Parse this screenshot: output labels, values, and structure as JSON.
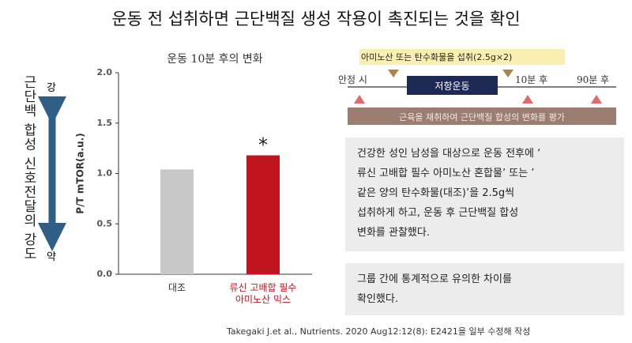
{
  "header": {
    "title": "운동 전 섭취하면 근단백질 생성 작용이 촉진되는 것을 확인"
  },
  "side": {
    "label": "근단백 합성 신호전달의 강도",
    "high": "강",
    "low": "약"
  },
  "chart_data": {
    "type": "bar",
    "subtitle": "운동 10분 후의 변화",
    "y_label": "P/T mTOR(a.u.)",
    "categories": [
      "대조",
      "류신 고배합 필수\n아미노산 믹스"
    ],
    "values": [
      1.04,
      1.18
    ],
    "colors": [
      "#c8c8c8",
      "#c0141f"
    ],
    "ylim": [
      0,
      2
    ],
    "yticks": [
      {
        "value": 0,
        "label": "0.0"
      },
      {
        "value": 0.5,
        "label": "0.5"
      },
      {
        "value": 1,
        "label": "1.0"
      },
      {
        "value": 1.5,
        "label": "1.5"
      },
      {
        "value": 2,
        "label": "2.0"
      }
    ],
    "annotation": "*"
  },
  "timeline": {
    "intake": "아미노산 또는 탄수화물을 섭취(2.5g×2)",
    "rest": "안정 시",
    "exercise": "저항운동",
    "t10": "10분 후",
    "t90": "90분 후",
    "evaluate": "근육을 채취하여 근단백질 합성의 변화를 평가"
  },
  "boxes": [
    {
      "lines": [
        "건강한 성인 남성을 대상으로 운동 전후에 ‘",
        "류신 고배합 필수 아미노산 혼합물’ 또는 ’",
        "같은 양의 탄수화물(대조)’을 2.5g씩",
        "섭취하게 하고, 운동 후 근단백질 합성",
        "변화를 관찰했다."
      ]
    },
    {
      "lines": [
        "그룹 간에 통계적으로 유의한 차이를",
        "확인했다."
      ]
    }
  ],
  "citation": "Takegaki J.et al., Nutrients. 2020 Aug12:12(8): E2421을 일부 수정해 작성"
}
